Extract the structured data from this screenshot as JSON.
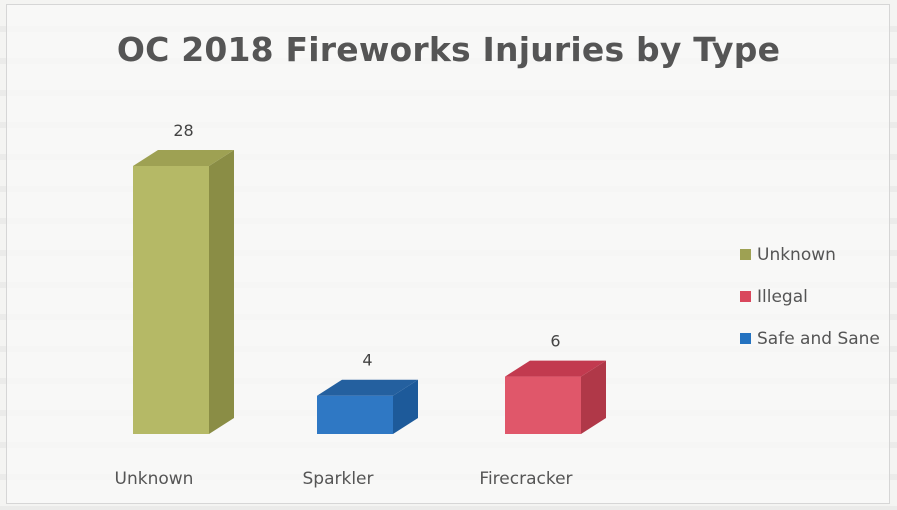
{
  "chart_data": {
    "type": "bar",
    "title": "OC 2018 Fireworks Injuries by Type",
    "xlabel": "",
    "ylabel": "",
    "categories": [
      "Unknown",
      "Sparkler",
      "Firecracker"
    ],
    "values": [
      28,
      4,
      6
    ],
    "data_labels": [
      "28",
      "4",
      "6"
    ],
    "bar_colors": [
      "#b5b966",
      "#2f78c4",
      "#e0576a"
    ],
    "bar_side_colors": [
      "#8a8d45",
      "#1d5a9a",
      "#b03848"
    ],
    "bar_top_colors": [
      "#9ea153",
      "#24609f",
      "#c23a4f"
    ],
    "ylim": [
      0,
      30
    ],
    "grid": false,
    "style": "3d-column",
    "legend_position": "right",
    "legend": [
      {
        "label": "Unknown",
        "color": "#9ea153"
      },
      {
        "label": "Illegal",
        "color": "#d9475c"
      },
      {
        "label": "Safe and Sane",
        "color": "#2472c0"
      }
    ]
  }
}
